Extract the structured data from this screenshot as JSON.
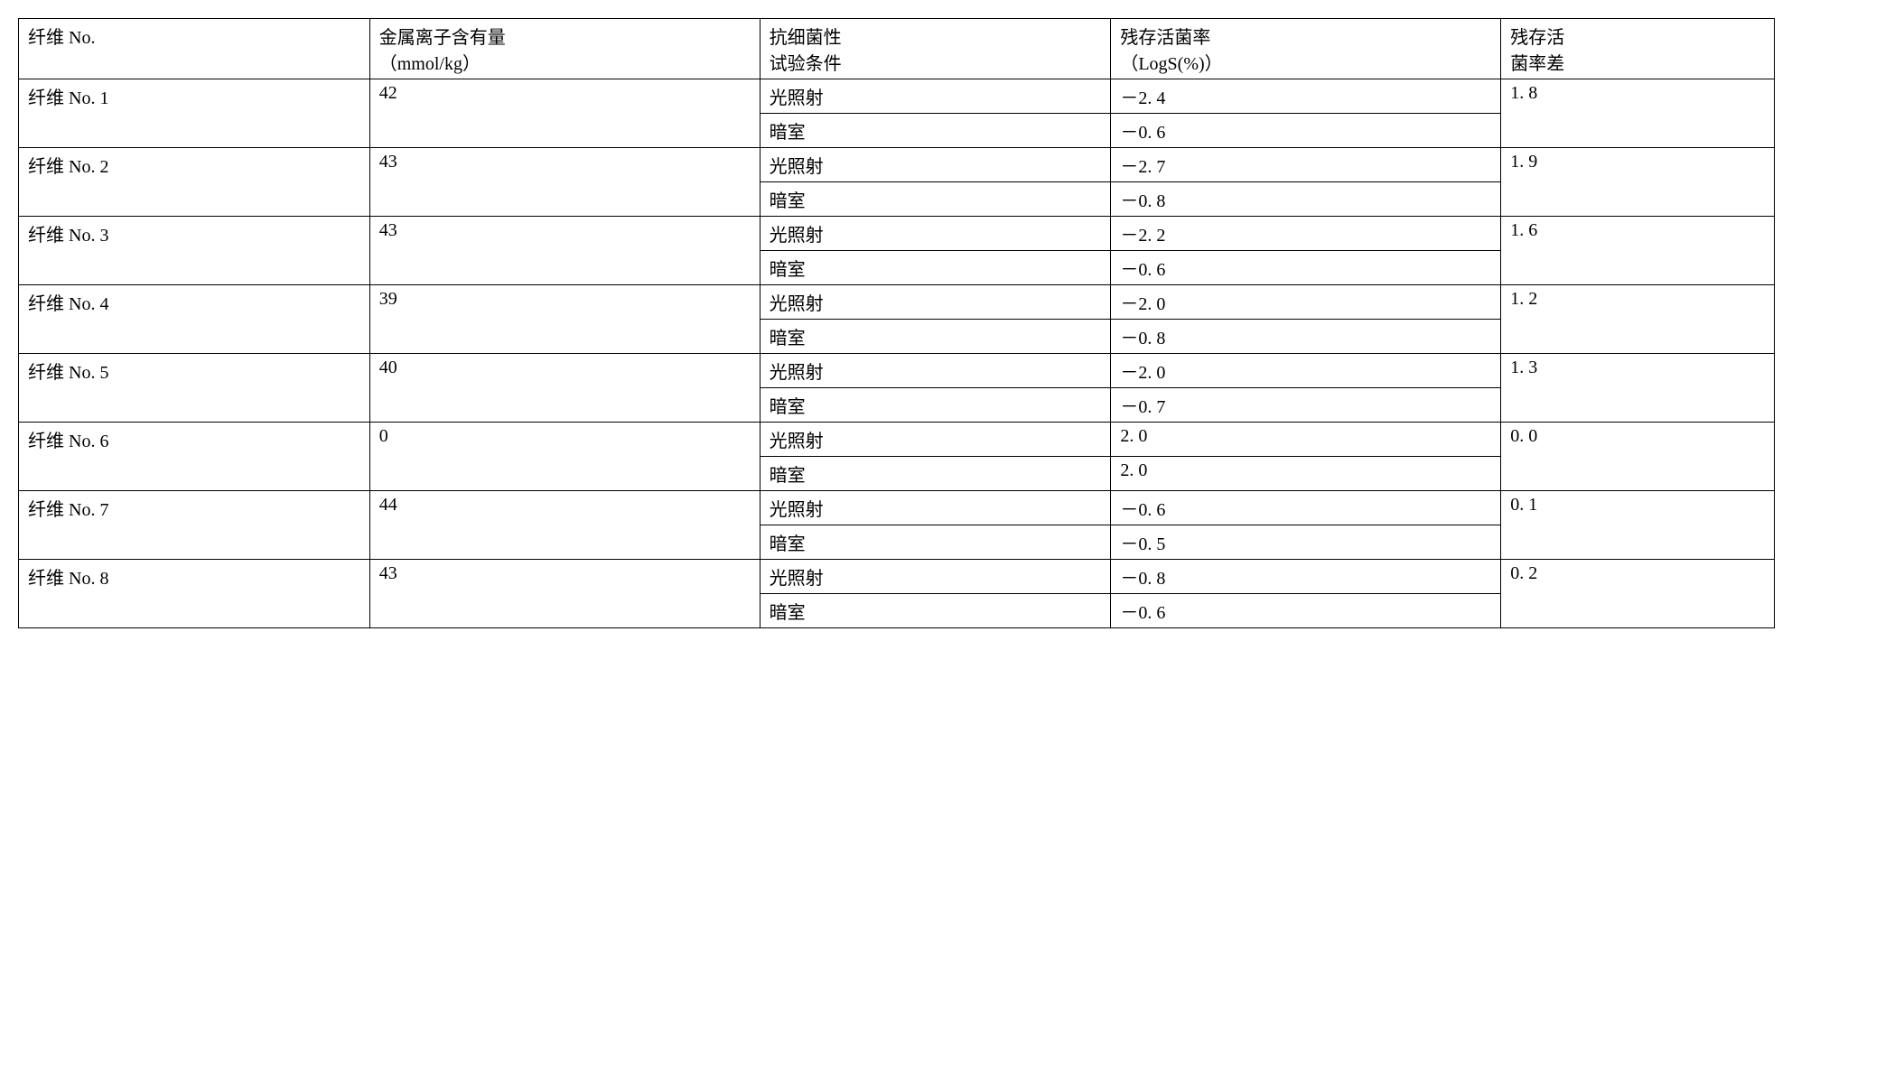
{
  "table": {
    "columns": [
      "纤维 No.",
      "金属离子含有量\n（mmol/kg）",
      "抗细菌性\n试验条件",
      "残存活菌率\n（LogS(%)）",
      "残存活\n菌率差"
    ],
    "column_widths": [
      "18%",
      "20%",
      "18%",
      "20%",
      "14%"
    ],
    "rows": [
      {
        "fiber": "纤维 No. 1",
        "ion": "42",
        "conditions": [
          "光照射",
          "暗室"
        ],
        "logs": [
          "－2. 4",
          "－0. 6"
        ],
        "diff": "1. 8"
      },
      {
        "fiber": "纤维 No. 2",
        "ion": "43",
        "conditions": [
          "光照射",
          "暗室"
        ],
        "logs": [
          "－2. 7",
          "－0. 8"
        ],
        "diff": "1. 9"
      },
      {
        "fiber": "纤维 No. 3",
        "ion": "43",
        "conditions": [
          "光照射",
          "暗室"
        ],
        "logs": [
          "－2. 2",
          "－0. 6"
        ],
        "diff": "1. 6"
      },
      {
        "fiber": "纤维 No. 4",
        "ion": "39",
        "conditions": [
          "光照射",
          "暗室"
        ],
        "logs": [
          "－2. 0",
          "－0. 8"
        ],
        "diff": "1. 2"
      },
      {
        "fiber": "纤维 No. 5",
        "ion": "40",
        "conditions": [
          "光照射",
          "暗室"
        ],
        "logs": [
          "－2. 0",
          "－0. 7"
        ],
        "diff": "1. 3"
      },
      {
        "fiber": "纤维 No. 6",
        "ion": "0",
        "conditions": [
          "光照射",
          "暗室"
        ],
        "logs": [
          "2. 0",
          "2. 0"
        ],
        "diff": "0. 0"
      },
      {
        "fiber": "纤维 No. 7",
        "ion": "44",
        "conditions": [
          "光照射",
          "暗室"
        ],
        "logs": [
          "－0. 6",
          "－0. 5"
        ],
        "diff": "0. 1"
      },
      {
        "fiber": "纤维 No. 8",
        "ion": "43",
        "conditions": [
          "光照射",
          "暗室"
        ],
        "logs": [
          "－0. 8",
          "－0. 6"
        ],
        "diff": "0. 2"
      }
    ],
    "border_color": "#000000",
    "background_color": "#ffffff",
    "font_size": 20
  }
}
